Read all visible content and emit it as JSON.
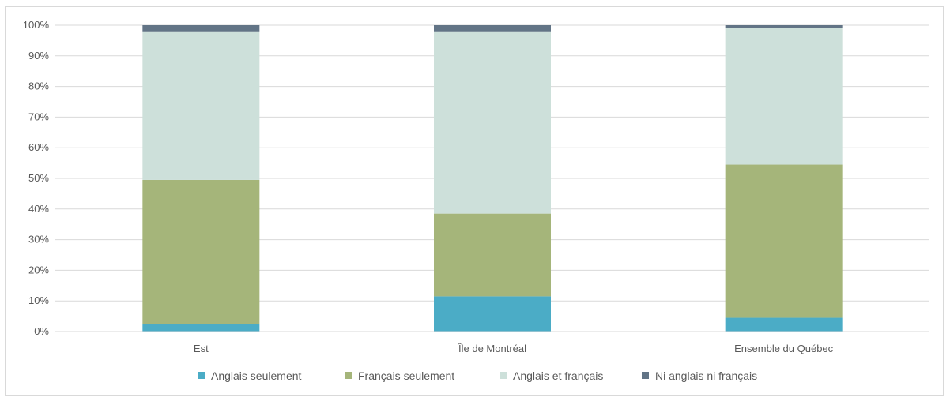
{
  "chart_data": {
    "type": "bar",
    "stacked": true,
    "percent_stacked": true,
    "categories": [
      "Est",
      "Île de Montréal",
      "Ensemble du Québec"
    ],
    "series": [
      {
        "name": "Anglais seulement",
        "color": "#4bacc6",
        "values": [
          2.5,
          11.5,
          4.5
        ]
      },
      {
        "name": "Français seulement",
        "color": "#a5b57a",
        "values": [
          47,
          27,
          50
        ]
      },
      {
        "name": "Anglais et français",
        "color": "#cde0da",
        "values": [
          48.5,
          59.5,
          44.5
        ]
      },
      {
        "name": "Ni anglais ni français",
        "color": "#627486",
        "values": [
          2,
          2,
          1
        ]
      }
    ],
    "y_ticks": [
      "0%",
      "10%",
      "20%",
      "30%",
      "40%",
      "50%",
      "60%",
      "70%",
      "80%",
      "90%",
      "100%"
    ],
    "ylim": [
      0,
      100
    ],
    "grid": true,
    "legend_position": "bottom",
    "title": "",
    "xlabel": "",
    "ylabel": ""
  }
}
